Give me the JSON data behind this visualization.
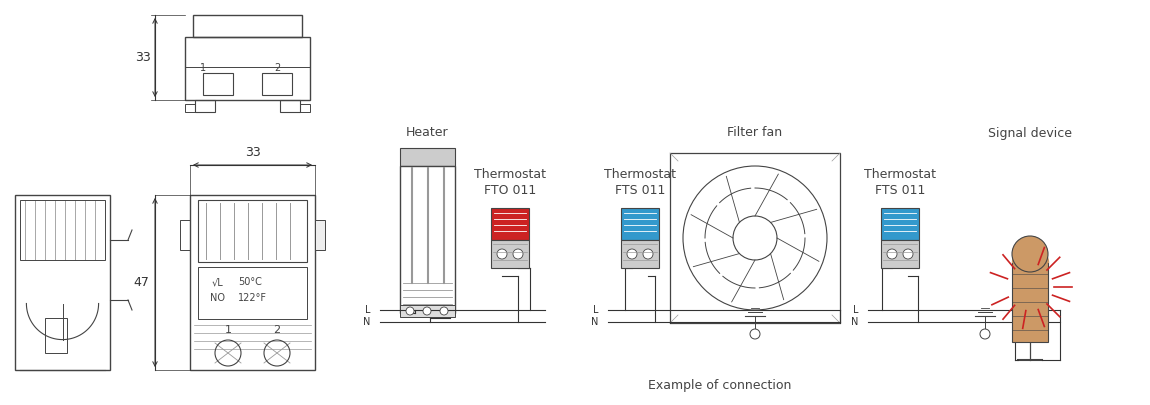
{
  "bg_color": "#ffffff",
  "fig_width": 11.5,
  "fig_height": 4.05,
  "dpi": 100,
  "dim_33_top_label": "33",
  "dim_33_side_label": "33",
  "dim_47_label": "47",
  "heater_label": "Heater",
  "thermostat_fto_label1": "Thermostat",
  "thermostat_fto_label2": "FTO 011",
  "thermostat_fts1_label1": "Thermostat",
  "thermostat_fts1_label2": "FTS 011",
  "filter_fan_label": "Filter fan",
  "thermostat_fts2_label1": "Thermostat",
  "thermostat_fts2_label2": "FTS 011",
  "signal_device_label": "Signal device",
  "example_label": "Example of connection",
  "line_color": "#444444",
  "dim_color": "#333333",
  "red_color": "#cc2222",
  "red_thermo": "#cc2222",
  "blue_thermo": "#3399cc",
  "orange_color": "#cc9966",
  "gray_color": "#aaaaaa",
  "dark_gray": "#666666",
  "light_gray": "#cccccc",
  "mid_gray": "#999999",
  "wire_color": "#333333"
}
